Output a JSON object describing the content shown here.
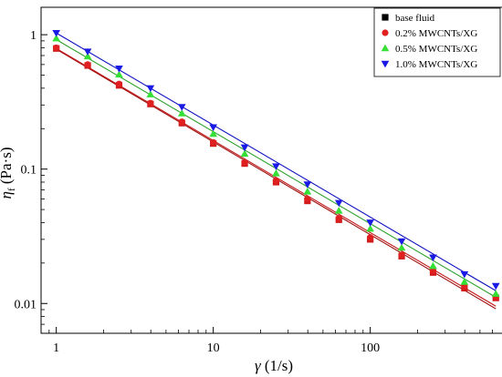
{
  "chart_data": {
    "type": "scatter",
    "x_scale": "log",
    "y_scale": "log",
    "xlim": [
      0.8,
      700
    ],
    "ylim": [
      0.006,
      1.6
    ],
    "xlabel": {
      "symbol": "γ",
      "unit": " (1/s)"
    },
    "ylabel": {
      "symbol": "η",
      "sub": "f",
      "unit": " (Pa·s)"
    },
    "x_ticks": [
      {
        "value": 1,
        "label": "1"
      },
      {
        "value": 10,
        "label": "10"
      },
      {
        "value": 100,
        "label": "100"
      }
    ],
    "y_ticks": [
      {
        "value": 1,
        "label": "1"
      },
      {
        "value": 0.1,
        "label": "0.1"
      },
      {
        "value": 0.01,
        "label": "0.01"
      }
    ],
    "grid": false,
    "legend_position": "top-right",
    "x": [
      1,
      1.585,
      2.512,
      3.981,
      6.31,
      10,
      15.85,
      25.12,
      39.81,
      63.1,
      100,
      158.5,
      251.2,
      398.1,
      631
    ],
    "series": [
      {
        "name": "base fluid",
        "color": "#d11a1a",
        "marker": "square",
        "fit_color": "#a01010",
        "fit": {
          "a": 0.78,
          "b": -0.69
        },
        "values": [
          0.79,
          0.59,
          0.42,
          0.305,
          0.22,
          0.155,
          0.11,
          0.08,
          0.058,
          0.042,
          0.03,
          0.0225,
          0.017,
          0.013,
          0.011
        ]
      },
      {
        "name": "0.2% MWCNTs/XG",
        "color": "#e02020",
        "marker": "circle",
        "fit_color": "#c01818",
        "fit": {
          "a": 0.79,
          "b": -0.685
        },
        "values": [
          0.8,
          0.6,
          0.43,
          0.31,
          0.225,
          0.158,
          0.112,
          0.082,
          0.06,
          0.043,
          0.031,
          0.023,
          0.0175,
          0.0135,
          0.0112
        ]
      },
      {
        "name": "0.5% MWCNTs/XG",
        "color": "#33e033",
        "marker": "triangle-up",
        "fit_color": "#2ca02c",
        "fit": {
          "a": 0.92,
          "b": -0.685
        },
        "values": [
          0.94,
          0.69,
          0.505,
          0.36,
          0.26,
          0.183,
          0.13,
          0.093,
          0.068,
          0.049,
          0.036,
          0.026,
          0.019,
          0.0145,
          0.0118
        ]
      },
      {
        "name": "1.0% MWCNTs/XG",
        "color": "#1a1ae6",
        "marker": "triangle-down",
        "fit_color": "#1010c0",
        "fit": {
          "a": 1.03,
          "b": -0.685
        },
        "values": [
          1.03,
          0.75,
          0.56,
          0.4,
          0.29,
          0.205,
          0.145,
          0.105,
          0.077,
          0.056,
          0.04,
          0.029,
          0.022,
          0.0165,
          0.0135
        ]
      }
    ]
  }
}
